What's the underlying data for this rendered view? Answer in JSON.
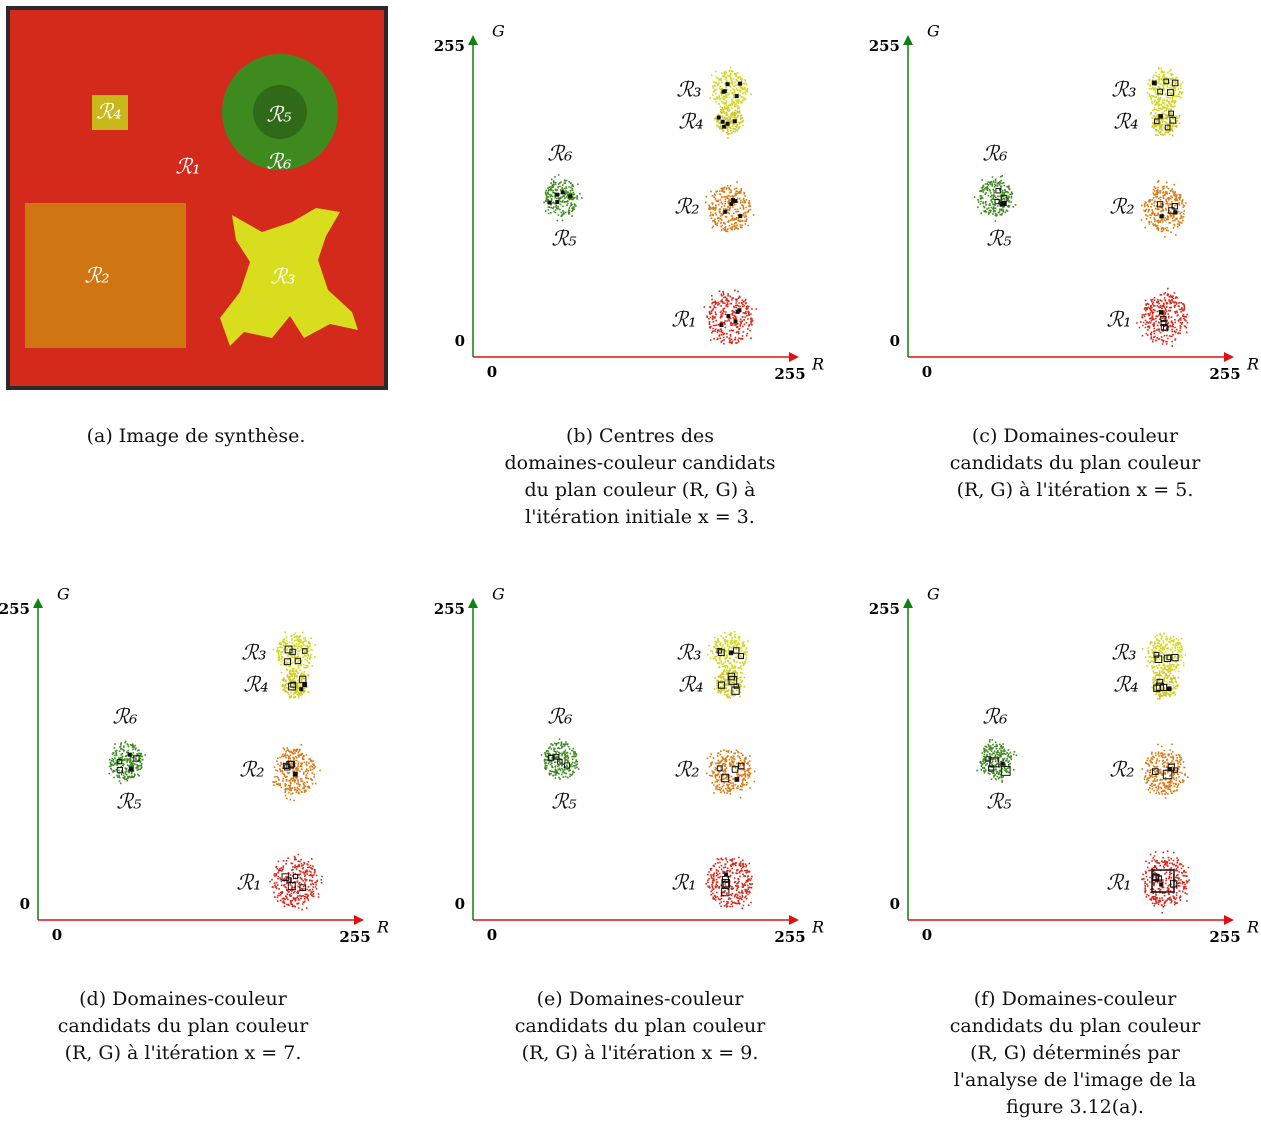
{
  "image_panel": {
    "regions": [
      "ℛ₁",
      "ℛ₂",
      "ℛ₃",
      "ℛ₄",
      "ℛ₅",
      "ℛ₆"
    ],
    "caption": [
      "(a) Image de synthèse."
    ]
  },
  "plots": [
    {
      "x_axis": "R",
      "y_axis": "G",
      "x_ticks": [
        0,
        255
      ],
      "y_ticks": [
        0,
        255
      ],
      "regions": [
        "ℛ₁",
        "ℛ₂",
        "ℛ₃",
        "ℛ₄",
        "ℛ₅",
        "ℛ₆"
      ],
      "caption": [
        "(b) Centres des",
        "domaines-couleur candidats",
        "du plan couleur (R, G) à",
        "l'itération initiale x = 3."
      ]
    },
    {
      "x_axis": "R",
      "y_axis": "G",
      "x_ticks": [
        0,
        255
      ],
      "y_ticks": [
        0,
        255
      ],
      "regions": [
        "ℛ₁",
        "ℛ₂",
        "ℛ₃",
        "ℛ₄",
        "ℛ₅",
        "ℛ₆"
      ],
      "caption": [
        "(c) Domaines-couleur",
        "candidats du plan couleur",
        "(R, G) à l'itération x = 5."
      ]
    },
    {
      "x_axis": "R",
      "y_axis": "G",
      "x_ticks": [
        0,
        255
      ],
      "y_ticks": [
        0,
        255
      ],
      "regions": [
        "ℛ₁",
        "ℛ₂",
        "ℛ₃",
        "ℛ₄",
        "ℛ₅",
        "ℛ₆"
      ],
      "caption": [
        "(d) Domaines-couleur",
        "candidats du plan couleur",
        "(R, G) à l'itération x = 7."
      ]
    },
    {
      "x_axis": "R",
      "y_axis": "G",
      "x_ticks": [
        0,
        255
      ],
      "y_ticks": [
        0,
        255
      ],
      "regions": [
        "ℛ₁",
        "ℛ₂",
        "ℛ₃",
        "ℛ₄",
        "ℛ₅",
        "ℛ₆"
      ],
      "caption": [
        "(e) Domaines-couleur",
        "candidats du plan couleur",
        "(R, G) à l'itération x = 9."
      ]
    },
    {
      "x_axis": "R",
      "y_axis": "G",
      "x_ticks": [
        0,
        255
      ],
      "y_ticks": [
        0,
        255
      ],
      "regions": [
        "ℛ₁",
        "ℛ₂",
        "ℛ₃",
        "ℛ₄",
        "ℛ₅",
        "ℛ₆"
      ],
      "caption": [
        "(f) Domaines-couleur",
        "candidats du plan couleur",
        "(R, G) déterminés par",
        "l'analyse de l'image de la",
        "figure 3.12(a)."
      ]
    }
  ]
}
